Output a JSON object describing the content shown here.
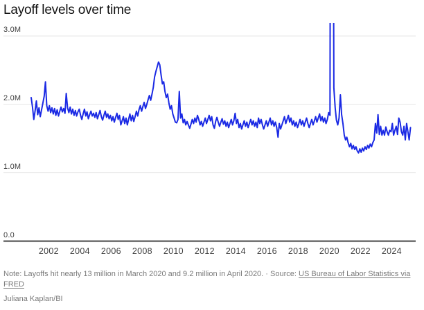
{
  "page": {
    "title": "Layoff levels over time",
    "note": {
      "prefix": "Note: Layoffs hit nearly 13 million in March 2020 and 9.2 million in April 2020.",
      "separator": "·",
      "source_label": "Source:",
      "source_link": "US Bureau of Labor Statistics via FRED"
    },
    "credit": "Juliana Kaplan/BI"
  },
  "colors": {
    "line": "#1b2ae4",
    "gridline": "#e4e4e4",
    "axis": "#454545",
    "tick_text": "#3e3e3e",
    "note_text": "#7a7a7a"
  },
  "chart_data": {
    "type": "line",
    "title": "Layoff levels over time",
    "unit": "monthly layoff level, millions",
    "x_start": "2000-12",
    "x_end": "2025-04",
    "grid": "horizontal",
    "legend": "none",
    "ylim_display": [
      0,
      3.19
    ],
    "clipped_peaks": {
      "2020-03": 13.0,
      "2020-04": 9.2
    },
    "x_tick_labels": [
      "2002",
      "2004",
      "2006",
      "2008",
      "2010",
      "2012",
      "2014",
      "2016",
      "2018",
      "2020",
      "2022",
      "2024"
    ],
    "y_ticks": [
      {
        "label": "3.0M",
        "value": 3.0
      },
      {
        "label": "2.0M",
        "value": 2.0
      },
      {
        "label": "1.0M",
        "value": 1.0
      },
      {
        "label": "0.0",
        "value": 0.0
      }
    ],
    "series": [
      {
        "name": "Layoff level",
        "monthly_values_millions": [
          2.1,
          1.96,
          1.78,
          1.9,
          2.05,
          1.85,
          1.95,
          1.82,
          1.92,
          2.02,
          2.12,
          2.33,
          1.98,
          1.9,
          1.98,
          1.88,
          1.95,
          1.86,
          1.94,
          1.84,
          1.92,
          1.83,
          1.9,
          1.96,
          1.89,
          1.94,
          1.87,
          2.16,
          1.95,
          1.88,
          1.96,
          1.86,
          1.93,
          1.84,
          1.91,
          1.83,
          1.89,
          1.93,
          1.84,
          1.78,
          1.86,
          1.93,
          1.83,
          1.89,
          1.79,
          1.85,
          1.9,
          1.83,
          1.87,
          1.81,
          1.88,
          1.79,
          1.85,
          1.91,
          1.82,
          1.77,
          1.84,
          1.9,
          1.81,
          1.86,
          1.79,
          1.84,
          1.76,
          1.82,
          1.74,
          1.81,
          1.87,
          1.78,
          1.84,
          1.7,
          1.76,
          1.82,
          1.72,
          1.8,
          1.7,
          1.78,
          1.86,
          1.76,
          1.84,
          1.75,
          1.82,
          1.9,
          1.83,
          1.92,
          1.98,
          1.9,
          1.97,
          2.03,
          1.94,
          2.0,
          2.07,
          2.13,
          2.06,
          2.15,
          2.25,
          2.4,
          2.48,
          2.55,
          2.62,
          2.58,
          2.43,
          2.3,
          2.33,
          2.19,
          2.1,
          2.15,
          2.02,
          1.93,
          1.98,
          1.86,
          1.8,
          1.74,
          1.73,
          1.78,
          2.19,
          1.8,
          1.86,
          1.73,
          1.78,
          1.7,
          1.75,
          1.7,
          1.65,
          1.71,
          1.78,
          1.72,
          1.8,
          1.74,
          1.84,
          1.78,
          1.7,
          1.75,
          1.68,
          1.74,
          1.8,
          1.72,
          1.78,
          1.84,
          1.76,
          1.82,
          1.7,
          1.65,
          1.75,
          1.81,
          1.74,
          1.68,
          1.74,
          1.79,
          1.71,
          1.76,
          1.68,
          1.74,
          1.66,
          1.72,
          1.78,
          1.7,
          1.76,
          1.87,
          1.72,
          1.78,
          1.66,
          1.72,
          1.64,
          1.7,
          1.76,
          1.68,
          1.74,
          1.66,
          1.72,
          1.78,
          1.7,
          1.76,
          1.68,
          1.74,
          1.66,
          1.8,
          1.72,
          1.78,
          1.7,
          1.64,
          1.7,
          1.76,
          1.68,
          1.74,
          1.8,
          1.7,
          1.76,
          1.68,
          1.74,
          1.66,
          1.52,
          1.72,
          1.64,
          1.7,
          1.76,
          1.82,
          1.72,
          1.78,
          1.84,
          1.74,
          1.8,
          1.7,
          1.76,
          1.68,
          1.74,
          1.66,
          1.72,
          1.78,
          1.7,
          1.76,
          1.68,
          1.74,
          1.8,
          1.72,
          1.66,
          1.72,
          1.78,
          1.7,
          1.76,
          1.82,
          1.74,
          1.8,
          1.86,
          1.76,
          1.82,
          1.74,
          1.8,
          1.72,
          1.78,
          1.88,
          1.84,
          13.0,
          9.2,
          2.24,
          1.95,
          1.77,
          1.7,
          1.8,
          2.14,
          1.85,
          1.72,
          1.55,
          1.48,
          1.52,
          1.44,
          1.38,
          1.43,
          1.35,
          1.4,
          1.34,
          1.38,
          1.32,
          1.29,
          1.35,
          1.3,
          1.36,
          1.32,
          1.38,
          1.34,
          1.4,
          1.36,
          1.42,
          1.38,
          1.44,
          1.48,
          1.72,
          1.58,
          1.85,
          1.56,
          1.68,
          1.55,
          1.62,
          1.55,
          1.67,
          1.6,
          1.55,
          1.62,
          1.6,
          1.72,
          1.55,
          1.62,
          1.68,
          1.56,
          1.8,
          1.74,
          1.6,
          1.55,
          1.68,
          1.48,
          1.72,
          1.6,
          1.48,
          1.66
        ]
      }
    ]
  }
}
